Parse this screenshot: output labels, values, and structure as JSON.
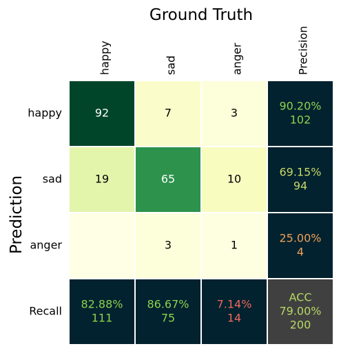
{
  "chart_data": {
    "type": "heatmap",
    "title": "Ground Truth",
    "ylabel": "Prediction",
    "col_labels": [
      "happy",
      "sad",
      "anger",
      "Precision"
    ],
    "row_labels": [
      "happy",
      "sad",
      "anger",
      "Recall"
    ],
    "matrix": [
      [
        92,
        7,
        3
      ],
      [
        19,
        65,
        10
      ],
      [
        null,
        3,
        1
      ]
    ],
    "precision": [
      {
        "percent": "90.20%",
        "count": "102",
        "color": "#8fd14f"
      },
      {
        "percent": "69.15%",
        "count": "94",
        "color": "#c8d86a"
      },
      {
        "percent": "25.00%",
        "count": "4",
        "color": "#f2a05a"
      }
    ],
    "recall": [
      {
        "percent": "82.88%",
        "count": "111",
        "color": "#8fd14f"
      },
      {
        "percent": "86.67%",
        "count": "75",
        "color": "#8fd14f"
      },
      {
        "percent": "7.14%",
        "count": "14",
        "color": "#f0685a"
      }
    ],
    "accuracy": {
      "label": "ACC",
      "percent": "79.00%",
      "count": "200",
      "color": "#b8d862"
    },
    "colors": {
      "metric_bg": "#01222e",
      "acc_bg": "#404040",
      "scale_low": "#ffffe5",
      "scale_mid": "#f7fcb9",
      "scale_high": "#004529"
    }
  }
}
